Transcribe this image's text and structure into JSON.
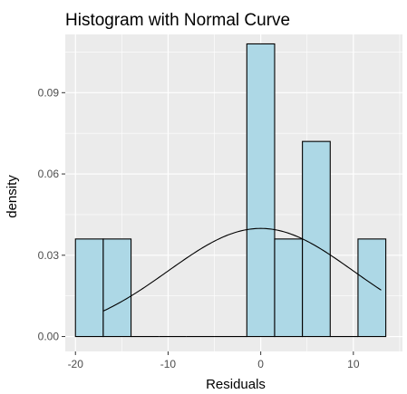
{
  "chart_data": {
    "type": "bar",
    "title": "Histogram with Normal Curve",
    "xlabel": "Residuals",
    "ylabel": "density",
    "xlim": [
      -21.1,
      15.3
    ],
    "ylim": [
      -0.0055,
      0.1115
    ],
    "x_ticks": [
      -20,
      -10,
      0,
      10
    ],
    "x_tick_labels": [
      "-20",
      "-10",
      "0",
      "10"
    ],
    "y_ticks": [
      0.0,
      0.03,
      0.06,
      0.09
    ],
    "y_tick_labels": [
      "0.00",
      "0.03",
      "0.06",
      "0.09"
    ],
    "bins": [
      {
        "x0": -20.0,
        "x1": -17.0,
        "density": 0.036
      },
      {
        "x0": -17.0,
        "x1": -14.0,
        "density": 0.036
      },
      {
        "x0": -14.0,
        "x1": -11.0,
        "density": 0.0
      },
      {
        "x0": -11.0,
        "x1": -8.0,
        "density": 0.0
      },
      {
        "x0": -8.0,
        "x1": -5.0,
        "density": 0.0
      },
      {
        "x0": -5.0,
        "x1": -1.5,
        "density": 0.0
      },
      {
        "x0": -1.5,
        "x1": 1.5,
        "density": 0.108
      },
      {
        "x0": 1.5,
        "x1": 4.5,
        "density": 0.036
      },
      {
        "x0": 4.5,
        "x1": 7.5,
        "density": 0.072
      },
      {
        "x0": 7.5,
        "x1": 10.5,
        "density": 0.0
      },
      {
        "x0": 10.5,
        "x1": 13.5,
        "density": 0.036
      }
    ],
    "normal_curve": {
      "mean": 0,
      "sd": 10,
      "x_range": [
        -17,
        13
      ]
    },
    "grid": true,
    "legend": "none",
    "colors": {
      "panel_background": "#ebebeb",
      "grid": "#ffffff",
      "bar_fill": "#add8e6",
      "bar_stroke": "#000000",
      "curve": "#000000",
      "tick_text": "#4d4d4d"
    }
  }
}
